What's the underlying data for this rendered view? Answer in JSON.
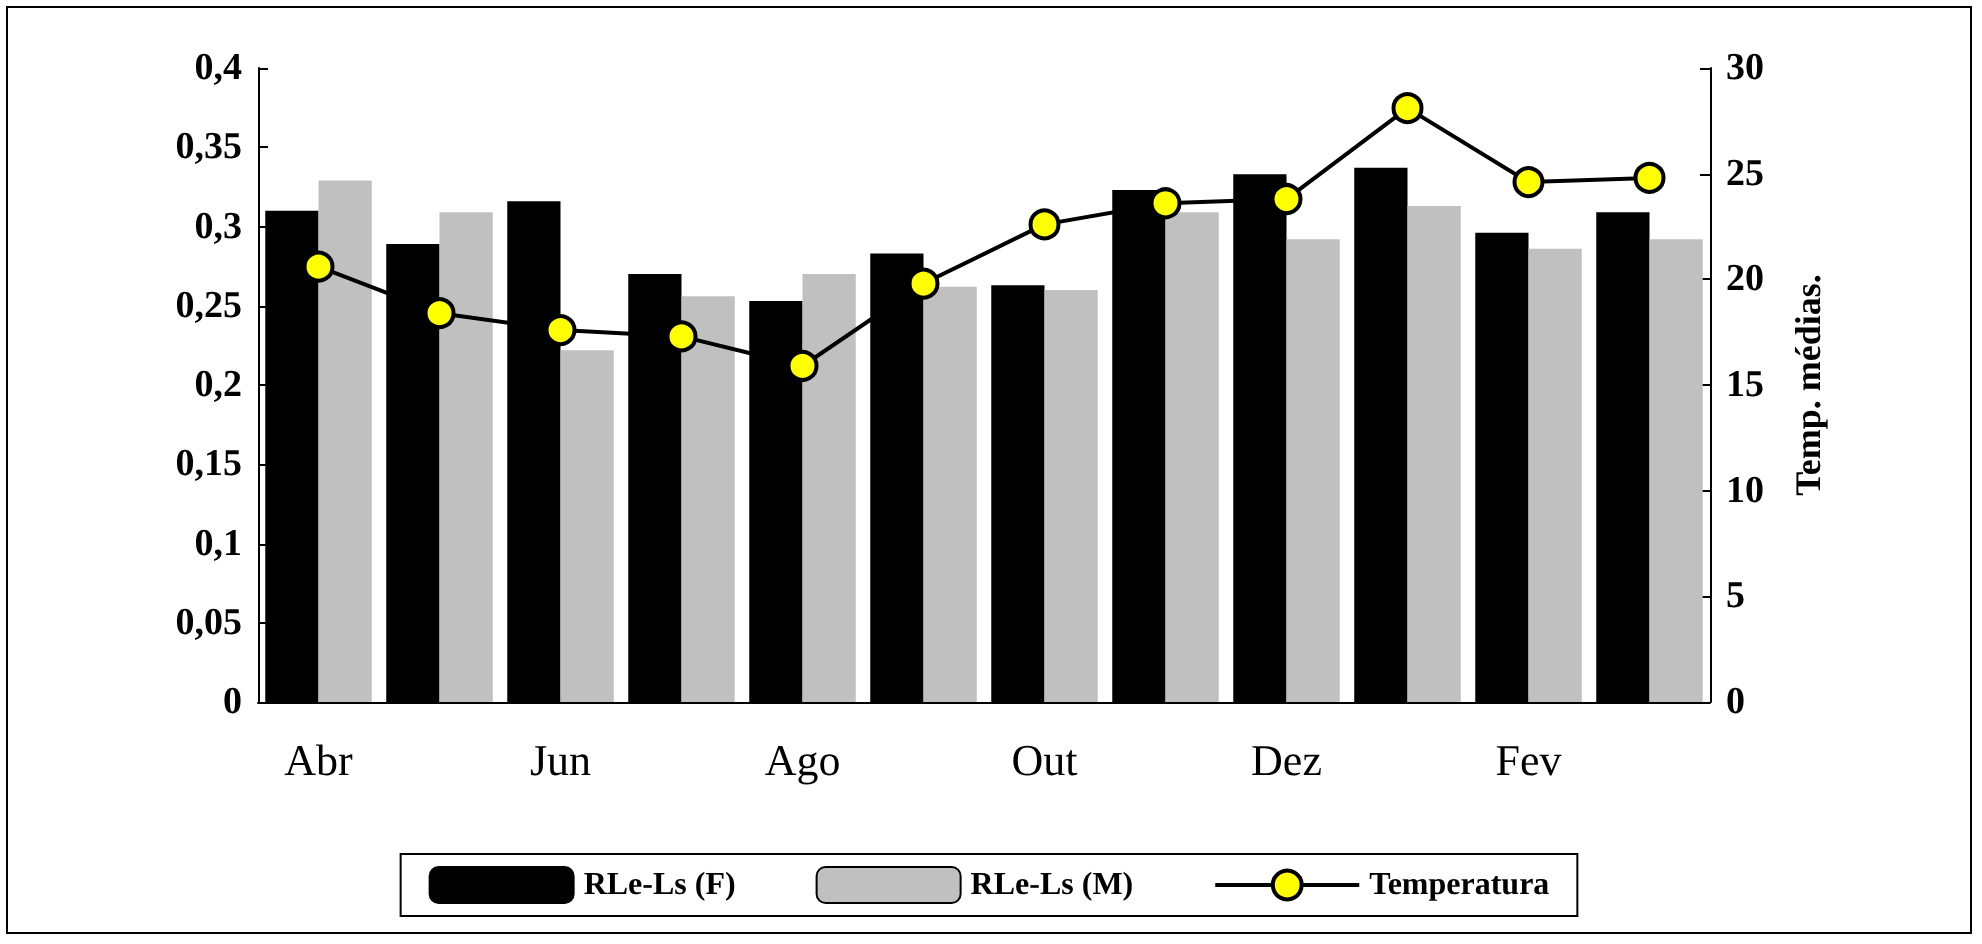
{
  "chart_data": {
    "type": "bar",
    "y2label": "Temp. médias.",
    "categories": [
      "Abr",
      null,
      "Jun",
      null,
      "Ago",
      null,
      "Out",
      null,
      "Dez",
      null,
      "Fev",
      null
    ],
    "series": [
      {
        "name": "RLe-Ls (F)",
        "color": "#000000",
        "values": [
          0.31,
          0.289,
          0.316,
          0.27,
          0.253,
          0.283,
          0.263,
          0.323,
          0.333,
          0.337,
          0.296,
          0.309
        ]
      },
      {
        "name": "RLe-Ls (M)",
        "color": "#c0c0c0",
        "values": [
          0.329,
          0.309,
          0.222,
          0.256,
          0.27,
          0.262,
          0.26,
          0.309,
          0.292,
          0.313,
          0.286,
          0.292
        ]
      },
      {
        "name": "Temperatura",
        "type": "line",
        "axis": "y2",
        "color": "#000000",
        "marker": "circle",
        "values": [
          20.6,
          18.4,
          17.6,
          17.3,
          15.9,
          19.8,
          22.6,
          23.6,
          23.8,
          28.1,
          24.6,
          24.8
        ]
      }
    ],
    "ylim": [
      0,
      0.4
    ],
    "yticks": [
      {
        "value": 0,
        "label": "0"
      },
      {
        "value": 0.05,
        "label": "0,05"
      },
      {
        "value": 0.1,
        "label": "0,1"
      },
      {
        "value": 0.15,
        "label": "0,15"
      },
      {
        "value": 0.2,
        "label": "0,2"
      },
      {
        "value": 0.25,
        "label": "0,25"
      },
      {
        "value": 0.3,
        "label": "0,3"
      },
      {
        "value": 0.35,
        "label": "0,35"
      },
      {
        "value": 0.4,
        "label": "0,4"
      }
    ],
    "y2lim": [
      0,
      30
    ],
    "y2ticks": [
      0,
      5,
      10,
      15,
      20,
      25,
      30
    ],
    "grid": false,
    "legend": "bottom"
  }
}
